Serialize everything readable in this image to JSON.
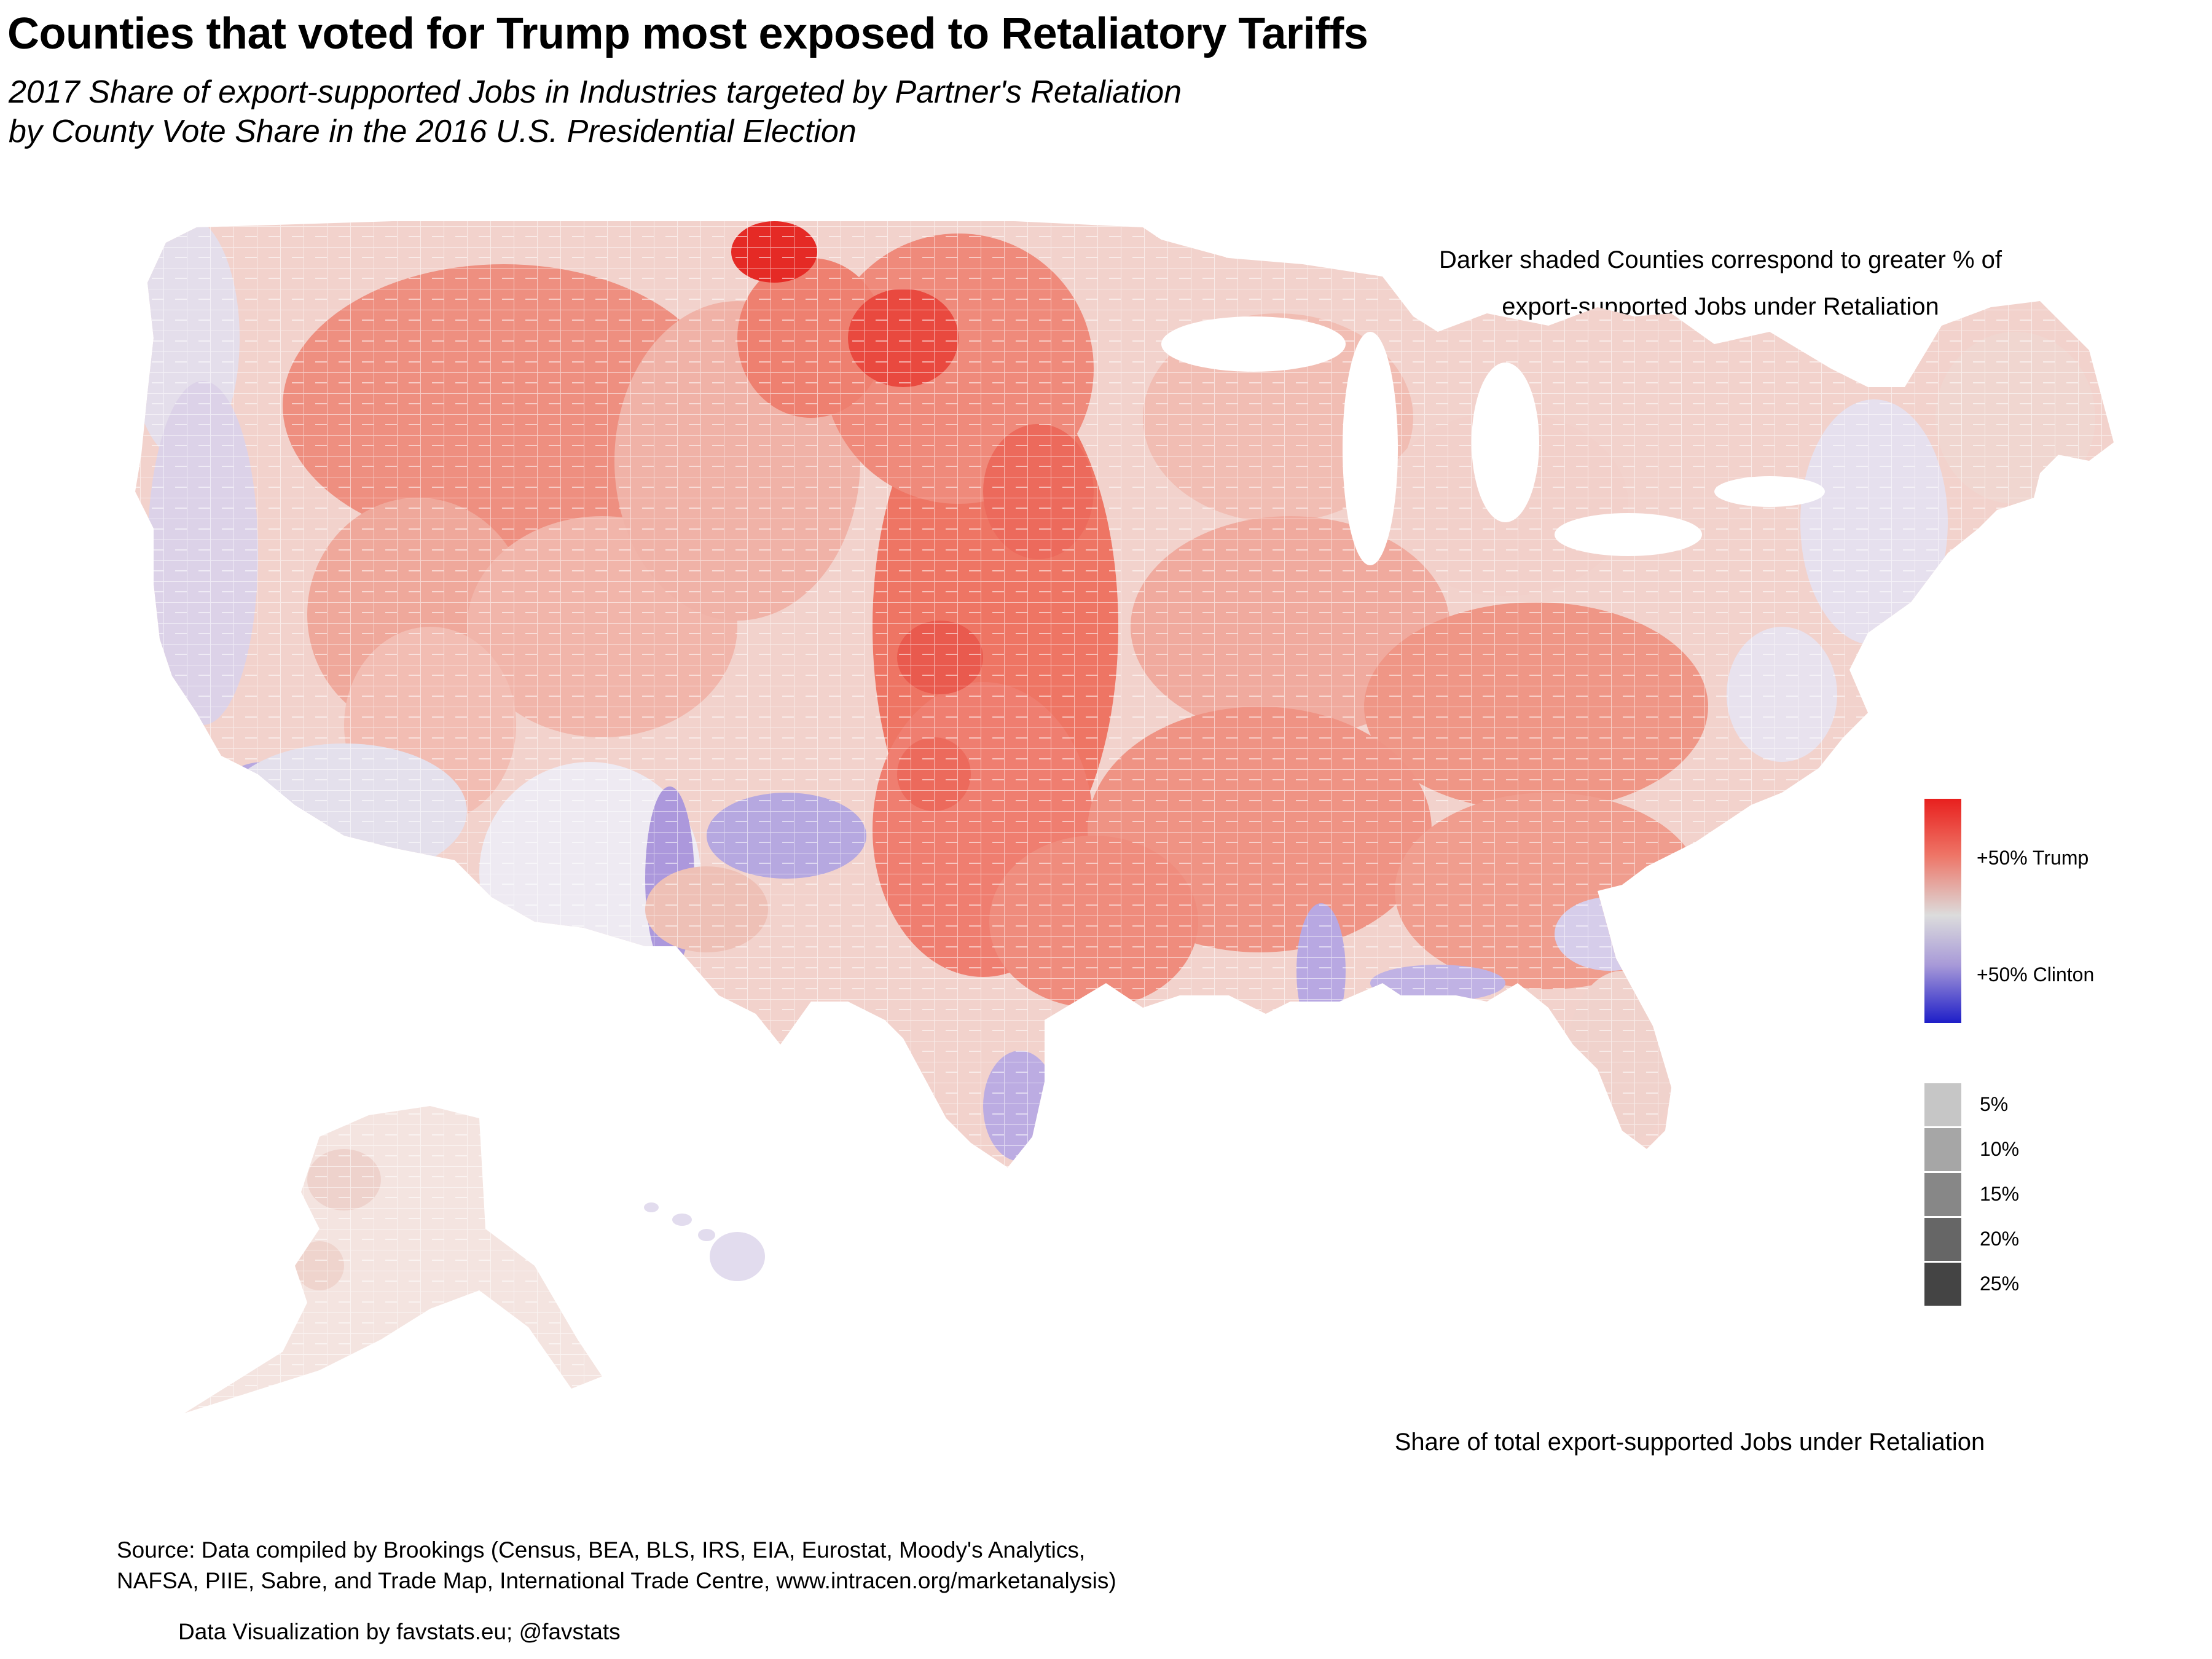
{
  "title": "Counties that voted for Trump most exposed to Retaliatory Tariffs",
  "subtitle": "2017 Share of export-supported Jobs in Industries targeted by Partner's Retaliation\nby County Vote Share in the 2016 U.S. Presidential Election",
  "legend_note": "Darker shaded Counties correspond to greater % of\nexport-supported Jobs under Retaliation",
  "vote_legend": {
    "labels": [
      "+50% Trump",
      "+50% Clinton"
    ],
    "colors": {
      "trump": "#e8201e",
      "neutral": "#dcdcdc",
      "clinton": "#1e1ec8"
    }
  },
  "share_legend": {
    "title": "Share of total export-supported Jobs under Retaliation",
    "items": [
      {
        "label": "5%",
        "color": "#c6c6c6"
      },
      {
        "label": "10%",
        "color": "#a6a6a6"
      },
      {
        "label": "15%",
        "color": "#878787"
      },
      {
        "label": "20%",
        "color": "#666666"
      },
      {
        "label": "25%",
        "color": "#444444"
      }
    ]
  },
  "source": "Source: Data compiled by Brookings (Census, BEA, BLS, IRS, EIA, Eurostat, Moody's Analytics,\nNAFSA, PIIE, Sabre, and Trade Map, International Trade Centre, www.intracen.org/marketanalysis)",
  "credit": "Data Visualization by favstats.eu; @favstats"
}
